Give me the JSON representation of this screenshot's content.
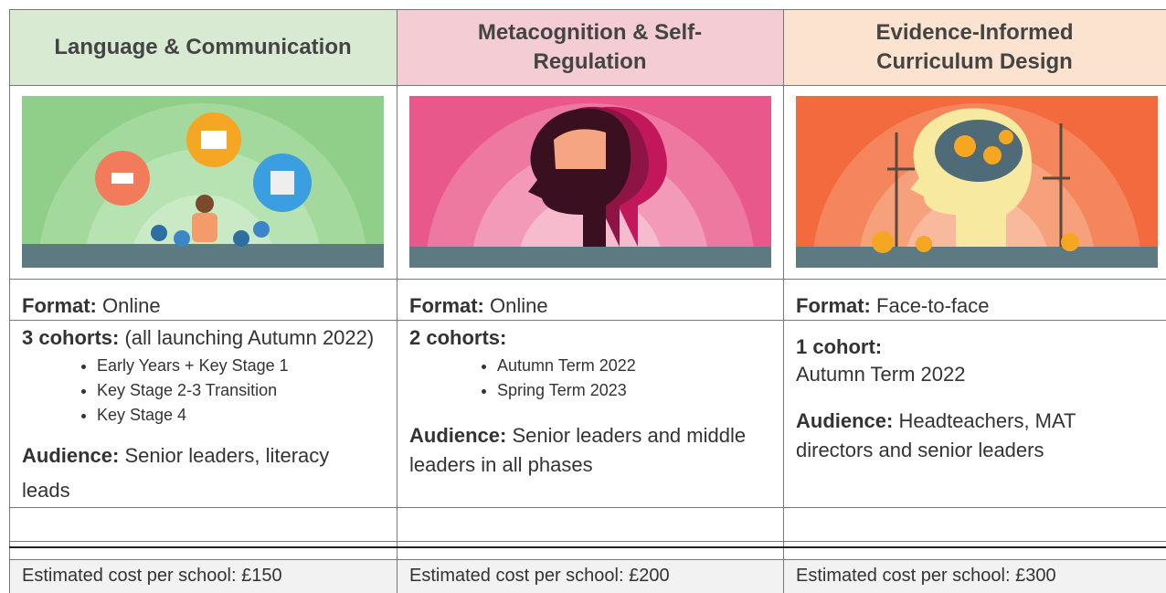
{
  "columns": [
    {
      "title": "Language & Communication",
      "format_label": "Format:",
      "format": "Online",
      "cohorts_label": "3 cohorts:",
      "cohorts_note": "(all launching Autumn 2022)",
      "cohort_items": [
        "Early Years + Key Stage 1",
        "Key Stage 2-3 Transition",
        "Key Stage 4"
      ],
      "audience_label": "Audience:",
      "audience": "Senior leaders, literacy leads",
      "cost": "Estimated cost per school: £150"
    },
    {
      "title": "Metacognition & Self-Regulation",
      "format_label": "Format:",
      "format": "Online",
      "cohorts_label": "2 cohorts:",
      "cohort_items": [
        "Autumn Term 2022",
        "Spring Term 2023"
      ],
      "audience_label": "Audience:",
      "audience": "Senior leaders and middle leaders in all phases",
      "cost": "Estimated cost per school: £200"
    },
    {
      "title": "Evidence-Informed Curriculum Design",
      "format_label": "Format:",
      "format": "Face-to-face",
      "cohorts_label": "1 cohort:",
      "cohorts_note": "Autumn Term 2022",
      "audience_label": "Audience:",
      "audience": "Headteachers, MAT directors and senior leaders",
      "cost": "Estimated cost per school: £300"
    }
  ]
}
